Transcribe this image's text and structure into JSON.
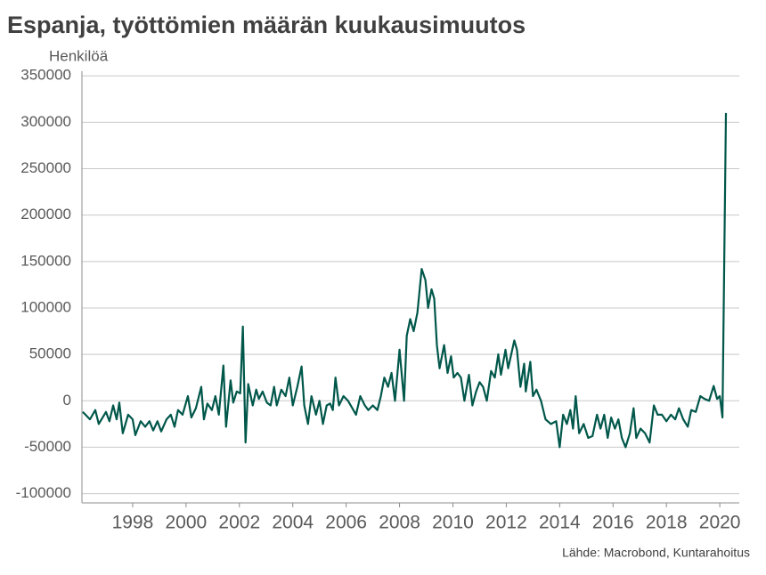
{
  "chart_data": {
    "type": "line",
    "title": "Espanja, työttömien määrän kuukausimuutos",
    "y_label": "Henkilöä",
    "source": "Lähde: Macrobond, Kuntarahoitus",
    "xlim": [
      1996.1,
      2020.73
    ],
    "xticks": [
      1998,
      2000,
      2002,
      2004,
      2006,
      2008,
      2010,
      2012,
      2014,
      2016,
      2018,
      2020
    ],
    "ylim": [
      -110000,
      355000
    ],
    "yticks": [
      -100000,
      -50000,
      0,
      50000,
      100000,
      150000,
      200000,
      250000,
      300000,
      350000
    ],
    "grid": true,
    "series": [
      {
        "name": "Espanja",
        "color": "#00574a",
        "x": [
          1996.13,
          1996.4,
          1996.6,
          1996.73,
          1997.0,
          1997.13,
          1997.27,
          1997.4,
          1997.5,
          1997.63,
          1997.83,
          1998.0,
          1998.1,
          1998.3,
          1998.47,
          1998.63,
          1998.77,
          1998.93,
          1999.07,
          1999.27,
          1999.43,
          1999.57,
          1999.7,
          1999.87,
          1999.97,
          2000.07,
          2000.2,
          2000.37,
          2000.57,
          2000.67,
          2000.8,
          2000.97,
          2001.1,
          2001.23,
          2001.4,
          2001.5,
          2001.67,
          2001.77,
          2001.9,
          2002.03,
          2002.13,
          2002.23,
          2002.33,
          2002.5,
          2002.63,
          2002.73,
          2002.87,
          2003.03,
          2003.17,
          2003.3,
          2003.4,
          2003.57,
          2003.73,
          2003.87,
          2004.0,
          2004.17,
          2004.33,
          2004.43,
          2004.57,
          2004.7,
          2004.87,
          2005.0,
          2005.13,
          2005.27,
          2005.4,
          2005.5,
          2005.6,
          2005.73,
          2005.9,
          2006.07,
          2006.23,
          2006.37,
          2006.53,
          2006.7,
          2006.83,
          2007.0,
          2007.17,
          2007.3,
          2007.43,
          2007.57,
          2007.7,
          2007.83,
          2008.0,
          2008.17,
          2008.27,
          2008.4,
          2008.53,
          2008.67,
          2008.83,
          2008.97,
          2009.07,
          2009.2,
          2009.3,
          2009.4,
          2009.5,
          2009.67,
          2009.8,
          2009.93,
          2010.03,
          2010.17,
          2010.3,
          2010.43,
          2010.6,
          2010.73,
          2010.87,
          2011.0,
          2011.13,
          2011.27,
          2011.43,
          2011.57,
          2011.7,
          2011.8,
          2011.97,
          2012.07,
          2012.3,
          2012.4,
          2012.53,
          2012.67,
          2012.73,
          2012.9,
          2013.0,
          2013.13,
          2013.3,
          2013.47,
          2013.67,
          2013.87,
          2014.0,
          2014.13,
          2014.27,
          2014.4,
          2014.5,
          2014.6,
          2014.73,
          2014.9,
          2015.07,
          2015.23,
          2015.4,
          2015.53,
          2015.67,
          2015.8,
          2015.93,
          2016.07,
          2016.2,
          2016.33,
          2016.47,
          2016.63,
          2016.77,
          2016.87,
          2017.03,
          2017.2,
          2017.37,
          2017.53,
          2017.67,
          2017.83,
          2018.0,
          2018.17,
          2018.33,
          2018.47,
          2018.63,
          2018.8,
          2018.93,
          2019.1,
          2019.27,
          2019.43,
          2019.6,
          2019.77,
          2019.9,
          2020.0,
          2020.1,
          2020.23
        ],
        "values": [
          -12000,
          -20000,
          -10000,
          -25000,
          -12000,
          -22000,
          -5000,
          -20000,
          -2000,
          -35000,
          -15000,
          -20000,
          -37000,
          -22000,
          -28000,
          -22000,
          -32000,
          -22000,
          -33000,
          -20000,
          -15000,
          -28000,
          -10000,
          -15000,
          -5000,
          5000,
          -18000,
          -8000,
          15000,
          -20000,
          -3000,
          -10000,
          5000,
          -15000,
          38000,
          -28000,
          22000,
          -2000,
          10000,
          8000,
          80000,
          -45000,
          18000,
          -5000,
          12000,
          2000,
          10000,
          -2000,
          -5000,
          15000,
          -5000,
          12000,
          5000,
          25000,
          -5000,
          15000,
          37000,
          -5000,
          -25000,
          5000,
          -15000,
          0,
          -25000,
          -5000,
          -3000,
          -10000,
          25000,
          -5000,
          5000,
          0,
          -8000,
          -15000,
          5000,
          -5000,
          -10000,
          -5000,
          -10000,
          5000,
          25000,
          15000,
          30000,
          0,
          55000,
          0,
          70000,
          88000,
          75000,
          95000,
          142000,
          130000,
          100000,
          120000,
          110000,
          60000,
          35000,
          60000,
          30000,
          48000,
          25000,
          30000,
          25000,
          0,
          28000,
          -5000,
          10000,
          20000,
          15000,
          0,
          32000,
          25000,
          50000,
          28000,
          55000,
          35000,
          65000,
          55000,
          15000,
          40000,
          10000,
          42000,
          5000,
          12000,
          0,
          -20000,
          -25000,
          -22000,
          -50000,
          -15000,
          -25000,
          -10000,
          -30000,
          5000,
          -35000,
          -25000,
          -40000,
          -38000,
          -15000,
          -30000,
          -15000,
          -40000,
          -18000,
          -30000,
          -20000,
          -40000,
          -50000,
          -35000,
          -8000,
          -40000,
          -30000,
          -35000,
          -45000,
          -5000,
          -15000,
          -15000,
          -22000,
          -15000,
          -20000,
          -8000,
          -20000,
          -28000,
          -10000,
          -12000,
          5000,
          2000,
          0,
          16000,
          2000,
          5000,
          -18000,
          310000
        ]
      }
    ]
  }
}
